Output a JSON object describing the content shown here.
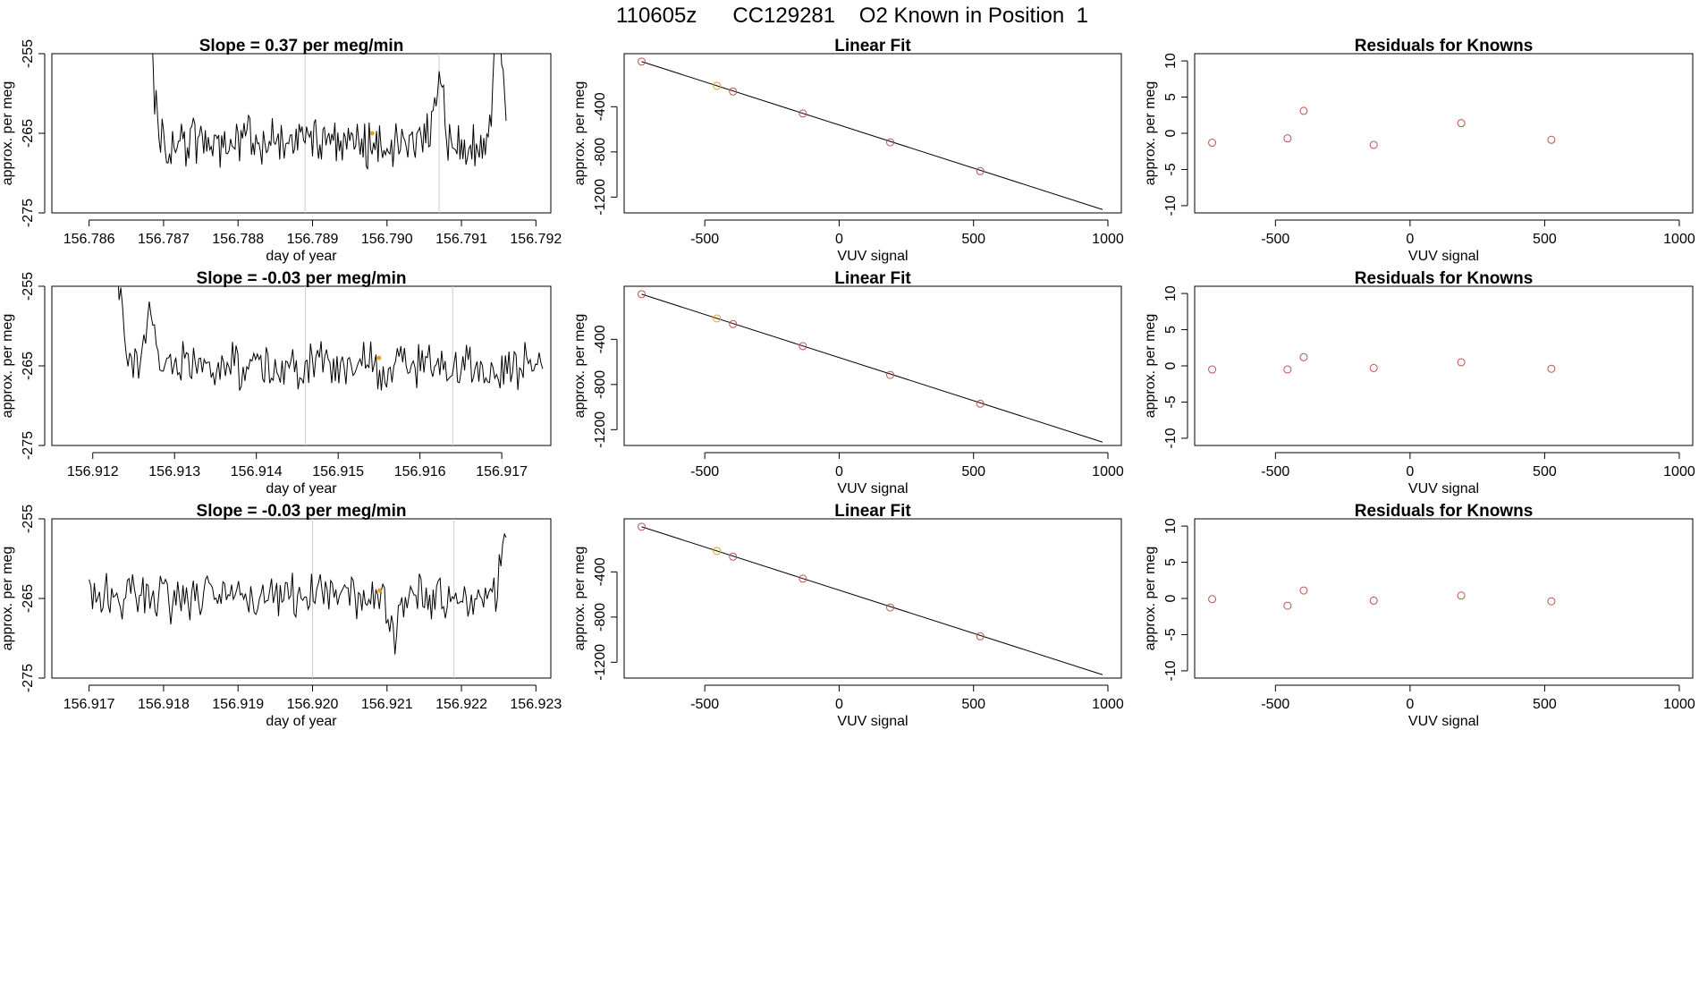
{
  "figure_title": "110605z      CC129281    O2 Known in Position  1",
  "colors": {
    "trace": "#000000",
    "marker_red": "#c0504d",
    "marker_orange": "#e5a020",
    "divider": "#cccccc"
  },
  "chart_data": [
    {
      "type": "line",
      "panel": "time-series",
      "row": 1,
      "title": "Slope =  0.37  per meg/min",
      "xlabel": "day of year",
      "ylabel": "approx. per meg",
      "xlim": [
        156.7855,
        156.7922
      ],
      "ylim": [
        -275,
        -255
      ],
      "xticks": [
        156.786,
        156.787,
        156.788,
        156.789,
        156.79,
        156.791,
        156.792
      ],
      "xtick_labels": [
        "156.786",
        "156.787",
        "156.788",
        "156.789",
        "156.790",
        "156.791",
        "156.792"
      ],
      "yticks": [
        -255,
        -265,
        -275
      ],
      "ytick_labels": [
        "-255",
        "-265",
        "-275"
      ],
      "start": 156.7868,
      "end": 156.7916,
      "level": -266,
      "noise": 2.5,
      "spikes": [
        {
          "x": 156.7868,
          "y": -250
        },
        {
          "x": 156.7907,
          "y": -259
        },
        {
          "x": 156.7915,
          "y": -250
        }
      ],
      "vlines": [
        156.7889,
        156.7907
      ],
      "highlight": {
        "x": 156.7898,
        "y": -265
      },
      "grid": false
    },
    {
      "type": "scatter",
      "panel": "linear-fit",
      "row": 1,
      "title": "Linear Fit",
      "xlabel": "VUV signal",
      "ylabel": "approx. per meg",
      "xlim": [
        -800,
        1050
      ],
      "ylim": [
        -1340,
        70
      ],
      "xticks": [
        -500,
        0,
        500,
        1000
      ],
      "xtick_labels": [
        "-500",
        "0",
        "500",
        "1000"
      ],
      "yticks": [
        -400,
        -800,
        -1200
      ],
      "ytick_labels": [
        "-400",
        "-800",
        "-1200"
      ],
      "points": [
        {
          "x": -735,
          "y": 0,
          "color": "red"
        },
        {
          "x": -455,
          "y": -215,
          "color": "orange"
        },
        {
          "x": -395,
          "y": -265,
          "color": "red"
        },
        {
          "x": -135,
          "y": -460,
          "color": "red"
        },
        {
          "x": 190,
          "y": -715,
          "color": "red"
        },
        {
          "x": 525,
          "y": -970,
          "color": "red"
        }
      ],
      "fit": {
        "x": [
          -735,
          980
        ],
        "y": [
          0,
          -1310
        ]
      }
    },
    {
      "type": "scatter",
      "panel": "residuals",
      "row": 1,
      "title": "Residuals for Knowns",
      "xlabel": "VUV signal",
      "ylabel": "approx. per meg",
      "xlim": [
        -800,
        1050
      ],
      "ylim": [
        -11,
        11
      ],
      "xticks": [
        -500,
        0,
        500,
        1000
      ],
      "xtick_labels": [
        "-500",
        "0",
        "500",
        "1000"
      ],
      "yticks": [
        10,
        5,
        0,
        -5,
        -10
      ],
      "ytick_labels": [
        "10",
        "5",
        "0",
        "-5",
        "-10"
      ],
      "points": [
        {
          "x": -735,
          "y": -1.3
        },
        {
          "x": -455,
          "y": -0.7
        },
        {
          "x": -395,
          "y": 3.1
        },
        {
          "x": -135,
          "y": -1.6
        },
        {
          "x": 190,
          "y": 1.4
        },
        {
          "x": 525,
          "y": -0.9
        }
      ]
    },
    {
      "type": "line",
      "panel": "time-series",
      "row": 2,
      "title": "Slope =  -0.03  per meg/min",
      "xlabel": "day of year",
      "ylabel": "approx. per meg",
      "xlim": [
        156.9115,
        156.9176
      ],
      "ylim": [
        -275,
        -255
      ],
      "xticks": [
        156.912,
        156.913,
        156.914,
        156.915,
        156.916,
        156.917
      ],
      "xtick_labels": [
        "156.912",
        "156.913",
        "156.914",
        "156.915",
        "156.916",
        "156.917"
      ],
      "yticks": [
        -255,
        -265,
        -275
      ],
      "ytick_labels": [
        "-255",
        "-265",
        "-275"
      ],
      "start": 156.9123,
      "end": 156.9175,
      "level": -265,
      "noise": 2.2,
      "spikes": [
        {
          "x": 156.9123,
          "y": -254
        },
        {
          "x": 156.9127,
          "y": -259
        }
      ],
      "vlines": [
        156.9146,
        156.9164
      ],
      "highlight": {
        "x": 156.9155,
        "y": -264
      },
      "grid": false
    },
    {
      "type": "scatter",
      "panel": "linear-fit",
      "row": 2,
      "title": "Linear Fit",
      "xlabel": "VUV signal",
      "ylabel": "approx. per meg",
      "xlim": [
        -800,
        1050
      ],
      "ylim": [
        -1340,
        70
      ],
      "xticks": [
        -500,
        0,
        500,
        1000
      ],
      "xtick_labels": [
        "-500",
        "0",
        "500",
        "1000"
      ],
      "yticks": [
        -400,
        -800,
        -1200
      ],
      "ytick_labels": [
        "-400",
        "-800",
        "-1200"
      ],
      "points": [
        {
          "x": -735,
          "y": 0,
          "color": "red"
        },
        {
          "x": -455,
          "y": -215,
          "color": "orange"
        },
        {
          "x": -395,
          "y": -265,
          "color": "red"
        },
        {
          "x": -135,
          "y": -460,
          "color": "red"
        },
        {
          "x": 190,
          "y": -715,
          "color": "red"
        },
        {
          "x": 525,
          "y": -970,
          "color": "red"
        }
      ],
      "fit": {
        "x": [
          -735,
          980
        ],
        "y": [
          0,
          -1310
        ]
      }
    },
    {
      "type": "scatter",
      "panel": "residuals",
      "row": 2,
      "title": "Residuals for Knowns",
      "xlabel": "VUV signal",
      "ylabel": "approx. per meg",
      "xlim": [
        -800,
        1050
      ],
      "ylim": [
        -11,
        11
      ],
      "xticks": [
        -500,
        0,
        500,
        1000
      ],
      "xtick_labels": [
        "-500",
        "0",
        "500",
        "1000"
      ],
      "yticks": [
        10,
        5,
        0,
        -5,
        -10
      ],
      "ytick_labels": [
        "10",
        "5",
        "0",
        "-5",
        "-10"
      ],
      "points": [
        {
          "x": -735,
          "y": -0.5
        },
        {
          "x": -455,
          "y": -0.5
        },
        {
          "x": -395,
          "y": 1.2
        },
        {
          "x": -135,
          "y": -0.3
        },
        {
          "x": 190,
          "y": 0.5
        },
        {
          "x": 525,
          "y": -0.4
        }
      ]
    },
    {
      "type": "line",
      "panel": "time-series",
      "row": 3,
      "title": "Slope =  -0.03  per meg/min",
      "xlabel": "day of year",
      "ylabel": "approx. per meg",
      "xlim": [
        156.9165,
        156.9232
      ],
      "ylim": [
        -275,
        -255
      ],
      "xticks": [
        156.917,
        156.918,
        156.919,
        156.92,
        156.921,
        156.922,
        156.923
      ],
      "xtick_labels": [
        "156.917",
        "156.918",
        "156.919",
        "156.920",
        "156.921",
        "156.922",
        "156.923"
      ],
      "yticks": [
        -255,
        -265,
        -275
      ],
      "ytick_labels": [
        "-255",
        "-265",
        "-275"
      ],
      "start": 156.917,
      "end": 156.9226,
      "level": -265,
      "noise": 2.3,
      "spikes": [
        {
          "x": 156.9211,
          "y": -270
        },
        {
          "x": 156.9226,
          "y": -255
        }
      ],
      "vlines": [
        156.92,
        156.9219
      ],
      "highlight": {
        "x": 156.9209,
        "y": -264
      },
      "grid": false
    },
    {
      "type": "scatter",
      "panel": "linear-fit",
      "row": 3,
      "title": "Linear Fit",
      "xlabel": "VUV signal",
      "ylabel": "approx. per meg",
      "xlim": [
        -800,
        1050
      ],
      "ylim": [
        -1340,
        70
      ],
      "xticks": [
        -500,
        0,
        500,
        1000
      ],
      "xtick_labels": [
        "-500",
        "0",
        "500",
        "1000"
      ],
      "yticks": [
        -400,
        -800,
        -1200
      ],
      "ytick_labels": [
        "-400",
        "-800",
        "-1200"
      ],
      "points": [
        {
          "x": -735,
          "y": 0,
          "color": "red"
        },
        {
          "x": -455,
          "y": -215,
          "color": "orange"
        },
        {
          "x": -395,
          "y": -265,
          "color": "red"
        },
        {
          "x": -135,
          "y": -460,
          "color": "red"
        },
        {
          "x": 190,
          "y": -715,
          "color": "red"
        },
        {
          "x": 525,
          "y": -970,
          "color": "red"
        }
      ],
      "fit": {
        "x": [
          -735,
          980
        ],
        "y": [
          0,
          -1310
        ]
      }
    },
    {
      "type": "scatter",
      "panel": "residuals",
      "row": 3,
      "title": "Residuals for Knowns",
      "xlabel": "VUV signal",
      "ylabel": "approx. per meg",
      "xlim": [
        -800,
        1050
      ],
      "ylim": [
        -11,
        11
      ],
      "xticks": [
        -500,
        0,
        500,
        1000
      ],
      "xtick_labels": [
        "-500",
        "0",
        "500",
        "1000"
      ],
      "yticks": [
        10,
        5,
        0,
        -5,
        -10
      ],
      "ytick_labels": [
        "10",
        "5",
        "0",
        "-5",
        "-10"
      ],
      "points": [
        {
          "x": -735,
          "y": -0.1
        },
        {
          "x": -455,
          "y": -1.0
        },
        {
          "x": -395,
          "y": 1.1
        },
        {
          "x": -135,
          "y": -0.3
        },
        {
          "x": 190,
          "y": 0.4
        },
        {
          "x": 525,
          "y": -0.4
        }
      ]
    }
  ]
}
